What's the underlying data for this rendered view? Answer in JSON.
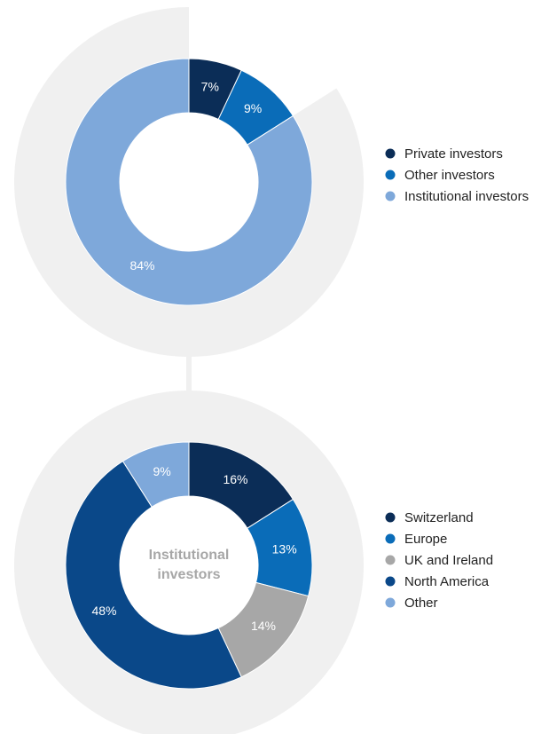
{
  "chart_data": [
    {
      "type": "donut",
      "categories": [
        "Private investors",
        "Other investors",
        "Institutional investors"
      ],
      "values": [
        7,
        9,
        84
      ],
      "value_labels": [
        "7%",
        "9%",
        "84%"
      ],
      "colors": [
        "#0b2d57",
        "#0a6cb8",
        "#7ea8da"
      ]
    },
    {
      "type": "donut",
      "center_label": "Institutional investors",
      "categories": [
        "Switzerland",
        "Europe",
        "UK and Ireland",
        "North America",
        "Other"
      ],
      "values": [
        16,
        13,
        14,
        48,
        9
      ],
      "value_labels": [
        "16%",
        "13%",
        "14%",
        "48%",
        "9%"
      ],
      "colors": [
        "#0b2d57",
        "#0a6cb8",
        "#a7a7a7",
        "#0a4889",
        "#7ea8da"
      ]
    }
  ]
}
